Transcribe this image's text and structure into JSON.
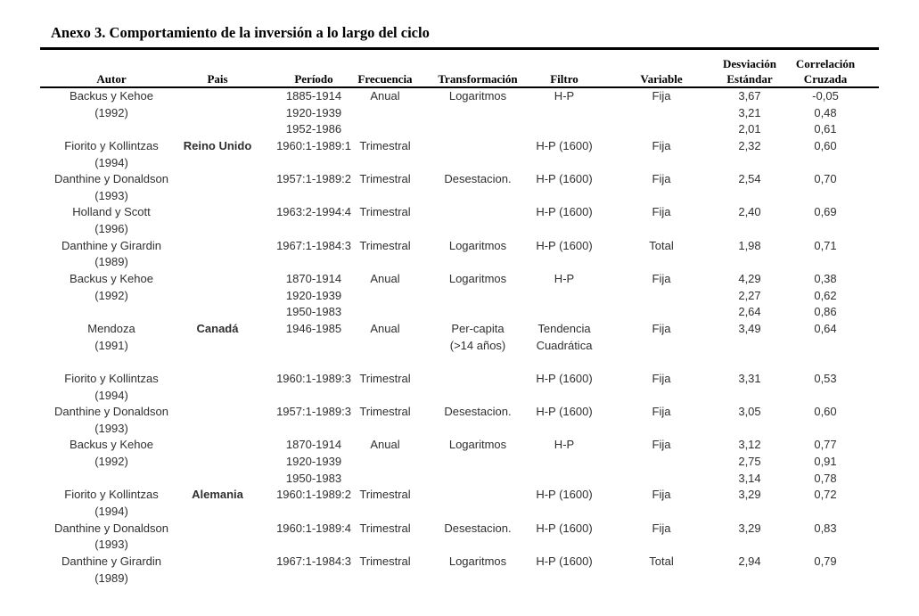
{
  "page": {
    "title": "Anexo 3. Comportamiento de la inversión a lo largo del ciclo"
  },
  "table": {
    "columns": [
      {
        "key": "autor",
        "label": "Autor"
      },
      {
        "key": "pais",
        "label": "Pais"
      },
      {
        "key": "periodo",
        "label": "Período"
      },
      {
        "key": "frecuencia",
        "label": "Frecuencia"
      },
      {
        "key": "transformacion",
        "label": "Transformación"
      },
      {
        "key": "filtro",
        "label": "Filtro"
      },
      {
        "key": "variable",
        "label": "Variable"
      },
      {
        "key": "desviacion_estandar",
        "label_top": "Desviación",
        "label_bottom": "Estándar"
      },
      {
        "key": "correlacion_cruzada",
        "label_top": "Correlación",
        "label_bottom": "Cruzada"
      }
    ],
    "rows": [
      {
        "cells": [
          "Backus y Kehoe",
          "",
          "1885-1914",
          "Anual",
          "Logaritmos",
          "H-P",
          "Fija",
          "3,67",
          "-0,05"
        ]
      },
      {
        "cells": [
          "(1992)",
          "",
          "1920-1939",
          "",
          "",
          "",
          "",
          "3,21",
          "0,48"
        ]
      },
      {
        "cells": [
          "",
          "",
          "1952-1986",
          "",
          "",
          "",
          "",
          "2,01",
          "0,61"
        ]
      },
      {
        "cells": [
          "Fiorito y Kollintzas",
          "Reino Unido",
          "1960:1-1989:1",
          "Trimestral",
          "",
          "H-P (1600)",
          "Fija",
          "2,32",
          "0,60"
        ],
        "bold_cols": [
          1
        ]
      },
      {
        "cells": [
          "(1994)",
          "",
          "",
          "",
          "",
          "",
          "",
          "",
          ""
        ]
      },
      {
        "cells": [
          "Danthine y Donaldson",
          "",
          "1957:1-1989:2",
          "Trimestral",
          "Desestacion.",
          "H-P (1600)",
          "Fija",
          "2,54",
          "0,70"
        ]
      },
      {
        "cells": [
          "(1993)",
          "",
          "",
          "",
          "",
          "",
          "",
          "",
          ""
        ]
      },
      {
        "cells": [
          "Holland y Scott",
          "",
          "1963:2-1994:4",
          "Trimestral",
          "",
          "H-P (1600)",
          "Fija",
          "2,40",
          "0,69"
        ]
      },
      {
        "cells": [
          "(1996)",
          "",
          "",
          "",
          "",
          "",
          "",
          "",
          ""
        ]
      },
      {
        "cells": [
          "Danthine y Girardin",
          "",
          "1967:1-1984:3",
          "Trimestral",
          "Logaritmos",
          "H-P (1600)",
          "Total",
          "1,98",
          "0,71"
        ]
      },
      {
        "cells": [
          "(1989)",
          "",
          "",
          "",
          "",
          "",
          "",
          "",
          ""
        ]
      },
      {
        "cells": [
          "Backus y Kehoe",
          "",
          "1870-1914",
          "Anual",
          "Logaritmos",
          "H-P",
          "Fija",
          "4,29",
          "0,38"
        ]
      },
      {
        "cells": [
          "(1992)",
          "",
          "1920-1939",
          "",
          "",
          "",
          "",
          "2,27",
          "0,62"
        ]
      },
      {
        "cells": [
          "",
          "",
          "1950-1983",
          "",
          "",
          "",
          "",
          "2,64",
          "0,86"
        ]
      },
      {
        "cells": [
          "Mendoza",
          "Canadá",
          "1946-1985",
          "Anual",
          "Per-capita",
          "Tendencia",
          "Fija",
          "3,49",
          "0,64"
        ],
        "bold_cols": [
          1
        ]
      },
      {
        "cells": [
          "(1991)",
          "",
          "",
          "",
          "(>14 años)",
          "Cuadrática",
          "",
          "",
          ""
        ]
      },
      {
        "cells": [
          "",
          "",
          "",
          "",
          "",
          "",
          "",
          "",
          ""
        ]
      },
      {
        "cells": [
          "Fiorito y Kollintzas",
          "",
          "1960:1-1989:3",
          "Trimestral",
          "",
          "H-P (1600)",
          "Fija",
          "3,31",
          "0,53"
        ]
      },
      {
        "cells": [
          "(1994)",
          "",
          "",
          "",
          "",
          "",
          "",
          "",
          ""
        ]
      },
      {
        "cells": [
          "Danthine y Donaldson",
          "",
          "1957:1-1989:3",
          "Trimestral",
          "Desestacion.",
          "H-P (1600)",
          "Fija",
          "3,05",
          "0,60"
        ]
      },
      {
        "cells": [
          "(1993)",
          "",
          "",
          "",
          "",
          "",
          "",
          "",
          ""
        ]
      },
      {
        "cells": [
          "Backus y Kehoe",
          "",
          "1870-1914",
          "Anual",
          "Logaritmos",
          "H-P",
          "Fija",
          "3,12",
          "0,77"
        ]
      },
      {
        "cells": [
          "(1992)",
          "",
          "1920-1939",
          "",
          "",
          "",
          "",
          "2,75",
          "0,91"
        ]
      },
      {
        "cells": [
          "",
          "",
          "1950-1983",
          "",
          "",
          "",
          "",
          "3,14",
          "0,78"
        ]
      },
      {
        "cells": [
          "Fiorito y Kollintzas",
          "Alemania",
          "1960:1-1989:2",
          "Trimestral",
          "",
          "H-P (1600)",
          "Fija",
          "3,29",
          "0,72"
        ],
        "bold_cols": [
          1
        ]
      },
      {
        "cells": [
          "(1994)",
          "",
          "",
          "",
          "",
          "",
          "",
          "",
          ""
        ]
      },
      {
        "cells": [
          "Danthine y Donaldson",
          "",
          "1960:1-1989:4",
          "Trimestral",
          "Desestacion.",
          "H-P (1600)",
          "Fija",
          "3,29",
          "0,83"
        ]
      },
      {
        "cells": [
          "(1993)",
          "",
          "",
          "",
          "",
          "",
          "",
          "",
          ""
        ]
      },
      {
        "cells": [
          "Danthine y Girardin",
          "",
          "1967:1-1984:3",
          "Trimestral",
          "Logaritmos",
          "H-P (1600)",
          "Total",
          "2,94",
          "0,79"
        ]
      },
      {
        "cells": [
          "(1989)",
          "",
          "",
          "",
          "",
          "",
          "",
          "",
          ""
        ]
      }
    ]
  }
}
